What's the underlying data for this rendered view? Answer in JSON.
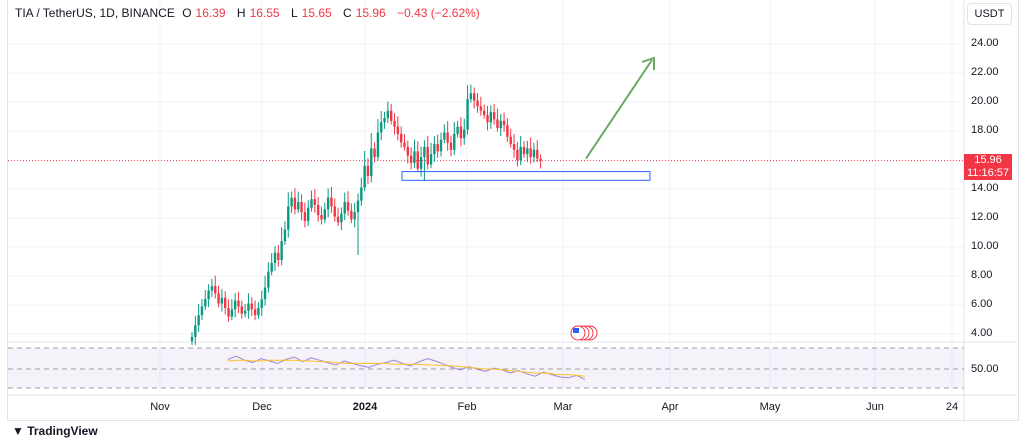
{
  "header": {
    "symbol": "TIA / TetherUS, 1D, BINANCE",
    "open_label": "O",
    "open": "16.39",
    "high_label": "H",
    "high": "16.55",
    "low_label": "L",
    "low": "15.65",
    "close_label": "C",
    "close": "15.96",
    "change": "−0.43 (−2.62%)"
  },
  "unit": "USDT",
  "price_axis": [
    "24.00",
    "22.00",
    "20.00",
    "18.00",
    "14.00",
    "12.00",
    "10.00",
    "8.00",
    "6.00",
    "4.00"
  ],
  "last_price": {
    "price": "15.96",
    "countdown": "11:16:57"
  },
  "rsi_axis": "50.00",
  "time_axis": [
    "Nov",
    "Dec",
    "2024",
    "Feb",
    "Mar",
    "Apr",
    "May",
    "Jun",
    "24"
  ],
  "branding": "TradingView",
  "colors": {
    "up": "#089981",
    "down": "#f23645",
    "arrow": "#6aaa64",
    "box": "#2962ff",
    "rsi": "#7e57c2",
    "rsi_ma": "#f7c325"
  },
  "chart_data": {
    "type": "candlestick",
    "start": "2023-11-10",
    "closes": [
      3.8,
      4.6,
      5.3,
      5.9,
      6.4,
      7.0,
      7.3,
      6.8,
      6.1,
      6.5,
      5.8,
      5.2,
      5.7,
      6.3,
      5.9,
      5.4,
      5.6,
      6.1,
      5.7,
      5.3,
      5.8,
      6.4,
      7.2,
      8.3,
      8.9,
      9.6,
      9.1,
      10.4,
      11.2,
      12.8,
      13.4,
      12.6,
      13.1,
      12.4,
      11.8,
      12.7,
      13.3,
      12.9,
      12.2,
      11.9,
      12.6,
      13.4,
      12.8,
      12.1,
      11.7,
      12.3,
      13.1,
      12.5,
      11.9,
      12.4,
      13.2,
      14.1,
      15.6,
      14.9,
      16.8,
      16.2,
      17.9,
      18.6,
      18.9,
      19.4,
      18.7,
      18.3,
      17.8,
      17.2,
      16.9,
      16.3,
      15.8,
      16.6,
      15.4,
      16.2,
      16.9,
      15.7,
      16.4,
      17.1,
      16.6,
      17.4,
      17.9,
      17.2,
      16.7,
      17.8,
      18.3,
      17.5,
      18.1,
      20.2,
      20.6,
      20.1,
      19.7,
      19.4,
      19.1,
      18.6,
      19.3,
      18.8,
      18.2,
      18.7,
      18.4,
      17.6,
      17.1,
      16.7,
      16.0,
      16.9,
      16.4,
      16.8,
      16.2,
      16.7,
      16.1,
      15.96
    ],
    "ylim": [
      4,
      24
    ],
    "box": [
      14.6,
      15.2
    ],
    "arrow": {
      "from": 16.1,
      "to": 22.9
    }
  },
  "rsi": [
    62,
    66,
    61,
    58,
    63,
    60,
    57,
    62,
    65,
    59,
    64,
    61,
    58,
    55,
    60,
    57,
    54,
    52,
    56,
    58,
    61,
    57,
    54,
    59,
    63,
    60,
    56,
    52,
    49,
    53,
    50,
    47,
    51,
    49,
    45,
    48,
    44,
    41,
    46,
    43,
    40,
    39,
    42,
    37
  ],
  "rsi_ma": [
    60,
    61,
    61,
    60,
    60,
    61,
    61,
    61,
    61,
    60,
    60,
    59,
    59,
    58,
    57,
    57,
    57,
    57,
    57,
    57,
    56,
    56,
    56,
    56,
    55,
    55,
    54,
    54,
    53,
    52,
    51,
    50,
    50,
    49,
    48,
    47,
    46,
    45,
    45,
    44,
    43,
    43,
    42,
    41
  ]
}
